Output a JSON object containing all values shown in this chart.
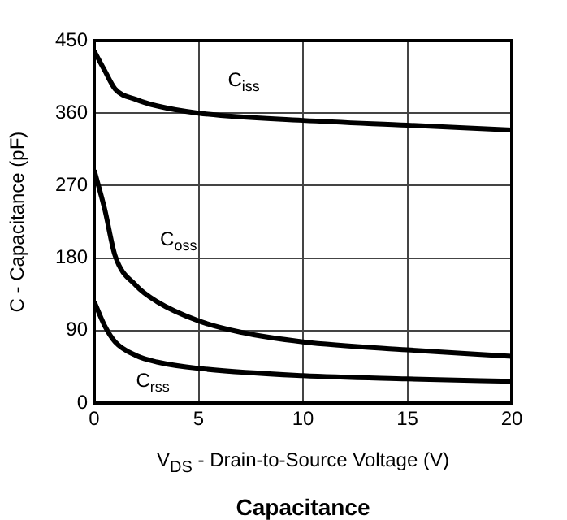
{
  "chart_data": {
    "type": "line",
    "title": "Capacitance",
    "xlabel": "V$_{DS}$ - Drain-to-Source Voltage (V)",
    "ylabel": "C - Capacitance (pF)",
    "xlim": [
      0,
      20
    ],
    "xticks": [
      0,
      5,
      10,
      15,
      20
    ],
    "ylim": [
      0,
      450
    ],
    "yticks": [
      0,
      90,
      180,
      270,
      360,
      450
    ],
    "grid": true,
    "legend": false,
    "marker": "none",
    "line_style": "solid",
    "series": [
      {
        "name": "C$_{iss}$",
        "color": "#000000",
        "x": [
          0,
          0.5,
          1,
          2,
          3,
          5,
          10,
          15,
          20
        ],
        "values": [
          437,
          413,
          390,
          377,
          369,
          360,
          351,
          345,
          339
        ]
      },
      {
        "name": "C$_{oss}$",
        "color": "#000000",
        "x": [
          0,
          0.5,
          1,
          2,
          3,
          5,
          7,
          10,
          15,
          20
        ],
        "values": [
          289,
          241,
          183,
          146,
          126,
          102,
          88,
          76,
          66,
          58
        ]
      },
      {
        "name": "C$_{rss}$",
        "color": "#000000",
        "x": [
          0,
          0.5,
          1,
          2,
          3,
          5,
          10,
          15,
          20
        ],
        "values": [
          126,
          96,
          76,
          59,
          51,
          43,
          34,
          30,
          27
        ]
      }
    ]
  }
}
